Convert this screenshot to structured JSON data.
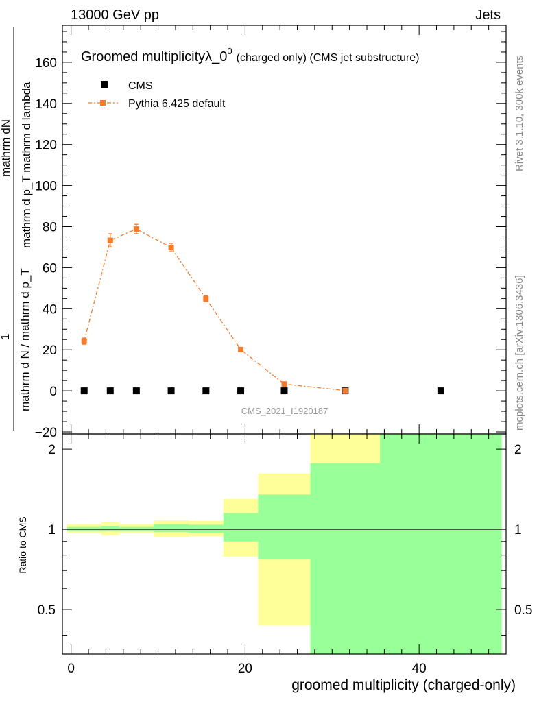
{
  "header": {
    "left": "13000 GeV pp",
    "right": "Jets"
  },
  "side_labels": {
    "rivet": "Rivet 3.1.10,  300k events",
    "mcplots": "mcplots.cern.ch [arXiv:1306.3436]"
  },
  "watermark": "CMS_2021_I1920187",
  "chart_data": [
    {
      "type": "scatter",
      "title_main": "Groomed multiplicityλ_0",
      "title_sup": "0",
      "title_suffix": "(charged only) (CMS jet substructure)",
      "ylabel_num": "mathrm dN",
      "ylabel_den": "mathrm d p_T mathrm d lambda",
      "ylabel_prefix": "1",
      "ylabel_prefix_den": "mathrm d N / mathrm d p_T",
      "xlim": [
        -1,
        50
      ],
      "ylim": [
        -21,
        178
      ],
      "yticks": [
        -20,
        0,
        20,
        40,
        60,
        80,
        100,
        120,
        140,
        160
      ],
      "legend_position": "top-left",
      "series": [
        {
          "name": "CMS",
          "marker": "square",
          "color": "#000000",
          "x": [
            1.5,
            4.5,
            7.5,
            11.5,
            15.5,
            19.5,
            24.5,
            31.5,
            42.5
          ],
          "y": [
            0,
            0,
            0,
            0,
            0,
            0,
            0,
            0,
            0
          ]
        },
        {
          "name": "Pythia 6.425 default",
          "marker": "square",
          "color": "#f37b2b",
          "line": "dash-dot",
          "x": [
            1.5,
            4.5,
            7.5,
            11.5,
            15.5,
            19.5,
            24.5,
            31.5
          ],
          "y": [
            24.2,
            73.3,
            78.8,
            69.8,
            44.9,
            20.1,
            3.3,
            0.1
          ],
          "yerr": [
            1.5,
            3.2,
            2.3,
            2.0,
            1.5,
            1.0,
            0.4,
            0.1
          ]
        }
      ]
    },
    {
      "type": "area",
      "ylabel": "Ratio to CMS",
      "xlabel": "groomed multiplicity (charged-only)",
      "xlim": [
        -1,
        50
      ],
      "ylim": [
        0.34,
        2.28
      ],
      "xticks": [
        0,
        20,
        40
      ],
      "yticks": [
        0.5,
        1,
        2
      ],
      "reference_line": 1,
      "bands": [
        {
          "x0": -0.5,
          "x1": 3.5,
          "yellow": [
            0.965,
            1.045
          ],
          "green": [
            0.985,
            1.02
          ]
        },
        {
          "x0": 3.5,
          "x1": 5.5,
          "yellow": [
            0.95,
            1.065
          ],
          "green": [
            0.985,
            1.03
          ]
        },
        {
          "x0": 5.5,
          "x1": 9.5,
          "yellow": [
            0.965,
            1.045
          ],
          "green": [
            0.985,
            1.02
          ]
        },
        {
          "x0": 9.5,
          "x1": 13.5,
          "yellow": [
            0.935,
            1.08
          ],
          "green": [
            0.975,
            1.045
          ]
        },
        {
          "x0": 13.5,
          "x1": 17.5,
          "yellow": [
            0.94,
            1.075
          ],
          "green": [
            0.97,
            1.04
          ]
        },
        {
          "x0": 17.5,
          "x1": 21.5,
          "yellow": [
            0.79,
            1.3
          ],
          "green": [
            0.9,
            1.15
          ]
        },
        {
          "x0": 21.5,
          "x1": 27.5,
          "yellow": [
            0.435,
            1.62
          ],
          "green": [
            0.77,
            1.35
          ]
        },
        {
          "x0": 27.5,
          "x1": 35.5,
          "yellow": [
            0.34,
            2.28
          ],
          "green": [
            0.34,
            1.77
          ]
        },
        {
          "x0": 35.5,
          "x1": 49.5,
          "yellow": [
            0.34,
            2.28
          ],
          "green": [
            0.34,
            2.28
          ]
        }
      ]
    }
  ],
  "colors": {
    "cms": "#000000",
    "pythia": "#f37b2b",
    "band_green": "#99ff99",
    "band_yellow": "#ffff99",
    "side_text": "#888888"
  }
}
